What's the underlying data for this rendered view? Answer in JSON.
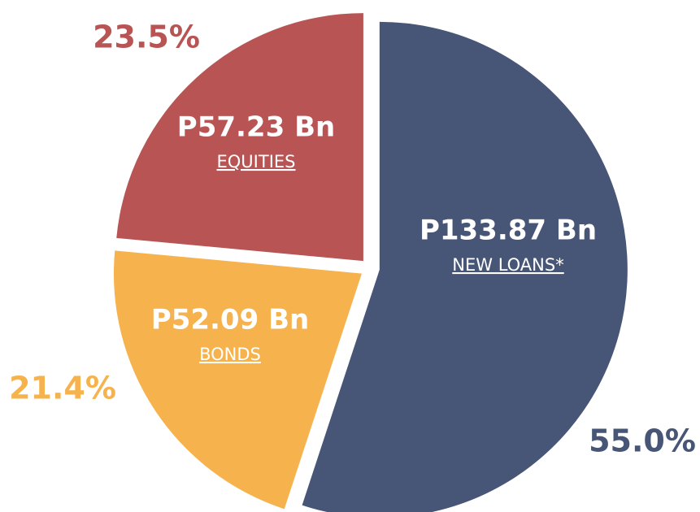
{
  "chart_data": {
    "type": "pie",
    "categories": [
      "NEW LOANS*",
      "BONDS",
      "EQUITIES"
    ],
    "values": [
      55.0,
      21.4,
      23.5
    ],
    "value_labels": [
      "55.0%",
      "21.4%",
      "23.5%"
    ],
    "amounts": [
      "P133.87 Bn",
      "P52.09 Bn",
      "P57.23 Bn"
    ],
    "colors": [
      "#475677",
      "#f6b24c",
      "#b85454"
    ]
  }
}
